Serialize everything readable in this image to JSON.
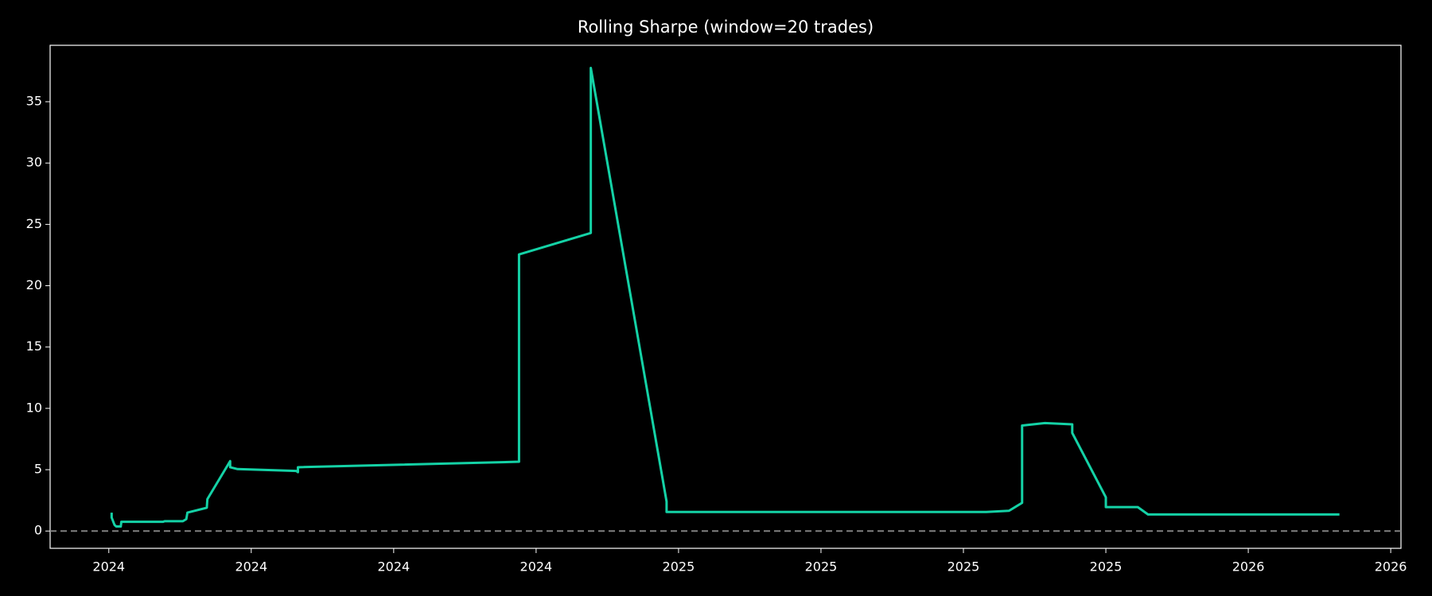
{
  "chart_data": {
    "type": "line",
    "title": "Rolling Sharpe (window=20 trades)",
    "x": [
      2024.005,
      2024.005,
      2024.01,
      2024.013,
      2024.021,
      2024.022,
      2024.095,
      2024.098,
      2024.13,
      2024.136,
      2024.138,
      2024.172,
      2024.173,
      2024.213,
      2024.213,
      2024.226,
      2024.329,
      2024.332,
      2024.332,
      2024.72,
      2024.72,
      2024.846,
      2024.846,
      2024.979,
      2024.979,
      2024.979,
      2025.54,
      2025.58,
      2025.603,
      2025.603,
      2025.643,
      2025.691,
      2025.691,
      2025.75,
      2025.75,
      2025.806,
      2025.824,
      2026.16
    ],
    "series": [
      {
        "name": "Rolling Sharpe",
        "color": "#14d2a6",
        "values": [
          1.5,
          1.1,
          0.5,
          0.37,
          0.37,
          0.75,
          0.75,
          0.8,
          0.8,
          0.97,
          1.5,
          1.9,
          2.6,
          5.7,
          5.2,
          5.05,
          4.9,
          4.8,
          5.2,
          5.65,
          22.55,
          24.3,
          37.75,
          2.4,
          2.0,
          1.55,
          1.55,
          1.65,
          2.3,
          8.6,
          8.8,
          8.7,
          8.0,
          2.75,
          1.95,
          1.95,
          1.35,
          1.35
        ]
      }
    ],
    "xlim": [
      2023.897,
      2026.268
    ],
    "xticks": [
      {
        "value": 2024.0,
        "label": "2024"
      },
      {
        "value": 2024.25,
        "label": "2024"
      },
      {
        "value": 2024.5,
        "label": "2024"
      },
      {
        "value": 2024.75,
        "label": "2024"
      },
      {
        "value": 2025.0,
        "label": "2025"
      },
      {
        "value": 2025.25,
        "label": "2025"
      },
      {
        "value": 2025.5,
        "label": "2025"
      },
      {
        "value": 2025.75,
        "label": "2025"
      },
      {
        "value": 2026.0,
        "label": "2026"
      },
      {
        "value": 2026.25,
        "label": "2026"
      }
    ],
    "ylim": [
      -1.41,
      39.6
    ],
    "yticks": [
      0,
      5,
      10,
      15,
      20,
      25,
      30,
      35
    ],
    "reference_line": {
      "y": 0,
      "color": "#808080"
    },
    "grid": false
  }
}
